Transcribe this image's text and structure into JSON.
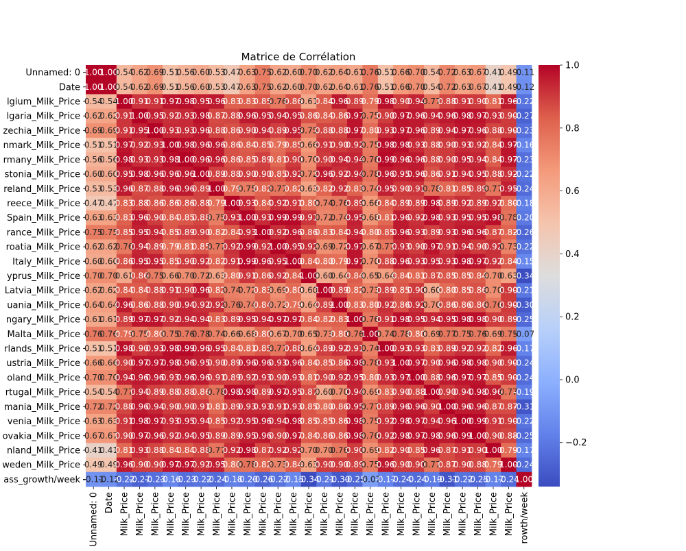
{
  "chart_data": {
    "type": "heatmap",
    "title": "Matrice de Corrélation",
    "xlabel": "",
    "ylabel": "",
    "row_labels": [
      "Unnamed: 0",
      "Date",
      "lgium_Milk_Price",
      "lgaria_Milk_Price",
      "zechia_Milk_Price",
      "nmark_Milk_Price",
      "rmany_Milk_Price",
      "stonia_Milk_Price",
      "reland_Milk_Price",
      "reece_Milk_Price",
      "Spain_Milk_Price",
      "rance_Milk_Price",
      "roatia_Milk_Price",
      "Italy_Milk_Price",
      "yprus_Milk_Price",
      "Latvia_Milk_Price",
      "uania_Milk_Price",
      "ngary_Milk_Price",
      "Malta_Milk_Price",
      "rlands_Milk_Price",
      "ustria_Milk_Price",
      "oland_Milk_Price",
      "rtugal_Milk_Price",
      "mania_Milk_Price",
      "venia_Milk_Price",
      "ovakia_Milk_Price",
      "nland_Milk_Price",
      "weden_Milk_Price",
      "ass_growth/week"
    ],
    "col_labels": [
      "Unnamed: 0",
      "Date",
      "Milk_Price",
      "Milk_Price",
      "Milk_Price",
      "Milk_Price",
      "Milk_Price",
      "Milk_Price",
      "Milk_Price",
      "Milk_Price",
      "Milk_Price",
      "Milk_Price",
      "Milk_Price",
      "Milk_Price",
      "Milk_Price",
      "Milk_Price",
      "Milk_Price",
      "Milk_Price",
      "Milk_Price",
      "Milk_Price",
      "Milk_Price",
      "Milk_Price",
      "Milk_Price",
      "Milk_Price",
      "Milk_Price",
      "Milk_Price",
      "Milk_Price",
      "Milk_Price",
      "rowth/week"
    ],
    "values": [
      [
        1.0,
        1.0,
        0.54,
        0.62,
        0.69,
        0.51,
        0.56,
        0.6,
        0.53,
        0.47,
        0.63,
        0.75,
        0.62,
        0.6,
        0.7,
        0.62,
        0.64,
        0.61,
        0.76,
        0.51,
        0.66,
        0.7,
        0.54,
        0.72,
        0.63,
        0.67,
        0.41,
        0.49,
        -0.11
      ],
      [
        1.0,
        1.0,
        0.54,
        0.62,
        0.69,
        0.51,
        0.56,
        0.6,
        0.53,
        0.47,
        0.63,
        0.75,
        0.62,
        0.6,
        0.7,
        0.62,
        0.64,
        0.61,
        0.76,
        0.51,
        0.66,
        0.7,
        0.54,
        0.72,
        0.63,
        0.67,
        0.41,
        0.49,
        -0.12
      ],
      [
        0.54,
        0.54,
        1.0,
        0.91,
        0.91,
        0.97,
        0.98,
        0.95,
        0.96,
        0.83,
        0.83,
        0.85,
        0.76,
        0.86,
        0.61,
        0.84,
        0.96,
        0.89,
        0.79,
        0.98,
        0.9,
        0.94,
        0.77,
        0.88,
        0.91,
        0.9,
        0.81,
        0.96,
        -0.22
      ],
      [
        0.62,
        0.62,
        0.91,
        1.0,
        0.95,
        0.92,
        0.93,
        0.98,
        0.87,
        0.88,
        0.96,
        0.95,
        0.94,
        0.95,
        0.86,
        0.84,
        0.86,
        0.97,
        0.75,
        0.9,
        0.97,
        0.96,
        0.94,
        0.96,
        0.98,
        0.97,
        0.93,
        0.9,
        -0.27
      ],
      [
        0.69,
        0.69,
        0.91,
        0.95,
        1.0,
        0.93,
        0.93,
        0.96,
        0.88,
        0.86,
        0.9,
        0.94,
        0.89,
        0.95,
        0.75,
        0.88,
        0.88,
        0.97,
        0.8,
        0.93,
        0.97,
        0.96,
        0.89,
        0.94,
        0.97,
        0.96,
        0.88,
        0.9,
        -0.23
      ],
      [
        0.51,
        0.51,
        0.97,
        0.92,
        0.93,
        1.0,
        0.98,
        0.96,
        0.96,
        0.86,
        0.84,
        0.85,
        0.79,
        0.85,
        0.66,
        0.91,
        0.9,
        0.92,
        0.75,
        0.98,
        0.98,
        0.93,
        0.88,
        0.9,
        0.93,
        0.92,
        0.84,
        0.97,
        -0.16
      ],
      [
        0.56,
        0.56,
        0.98,
        0.93,
        0.93,
        0.98,
        1.0,
        0.96,
        0.96,
        0.86,
        0.85,
        0.89,
        0.81,
        0.9,
        0.7,
        0.9,
        0.94,
        0.94,
        0.76,
        0.99,
        0.96,
        0.96,
        0.88,
        0.9,
        0.95,
        0.94,
        0.84,
        0.97,
        -0.23
      ],
      [
        0.6,
        0.6,
        0.95,
        0.98,
        0.96,
        0.96,
        0.96,
        1.0,
        0.89,
        0.88,
        0.9,
        0.9,
        0.85,
        0.92,
        0.72,
        0.96,
        0.92,
        0.94,
        0.78,
        0.96,
        0.95,
        0.96,
        0.86,
        0.91,
        0.94,
        0.95,
        0.88,
        0.92,
        -0.22
      ],
      [
        0.53,
        0.53,
        0.96,
        0.87,
        0.88,
        0.96,
        0.96,
        0.89,
        1.0,
        0.79,
        0.75,
        0.82,
        0.77,
        0.82,
        0.63,
        0.82,
        0.92,
        0.83,
        0.74,
        0.95,
        0.9,
        0.91,
        0.78,
        0.81,
        0.85,
        0.89,
        0.77,
        0.95,
        -0.24
      ],
      [
        0.47,
        0.47,
        0.83,
        0.88,
        0.86,
        0.86,
        0.86,
        0.88,
        0.79,
        1.0,
        0.93,
        0.84,
        0.92,
        0.91,
        0.8,
        0.74,
        0.76,
        0.89,
        0.66,
        0.84,
        0.89,
        0.89,
        0.98,
        0.89,
        0.92,
        0.89,
        0.92,
        0.8,
        -0.18
      ],
      [
        0.63,
        0.63,
        0.83,
        0.96,
        0.9,
        0.84,
        0.85,
        0.88,
        0.75,
        0.93,
        1.0,
        0.93,
        0.99,
        0.99,
        0.91,
        0.72,
        0.74,
        0.95,
        0.68,
        0.81,
        0.96,
        0.92,
        0.98,
        0.93,
        0.95,
        0.95,
        0.98,
        0.78,
        -0.2
      ],
      [
        0.75,
        0.75,
        0.85,
        0.95,
        0.94,
        0.85,
        0.89,
        0.9,
        0.82,
        0.84,
        0.93,
        1.0,
        0.92,
        0.96,
        0.86,
        0.83,
        0.84,
        0.94,
        0.8,
        0.85,
        0.96,
        0.93,
        0.89,
        0.93,
        0.96,
        0.96,
        0.87,
        0.82,
        -0.26
      ],
      [
        0.62,
        0.62,
        0.76,
        0.94,
        0.89,
        0.79,
        0.81,
        0.85,
        0.77,
        0.92,
        0.99,
        0.92,
        1.0,
        0.95,
        0.92,
        0.69,
        0.72,
        0.97,
        0.67,
        0.77,
        0.93,
        0.9,
        0.97,
        0.91,
        0.94,
        0.9,
        0.92,
        0.73,
        -0.22
      ],
      [
        0.6,
        0.6,
        0.86,
        0.95,
        0.95,
        0.85,
        0.9,
        0.92,
        0.82,
        0.91,
        0.99,
        0.96,
        0.95,
        1.0,
        0.84,
        0.8,
        0.79,
        0.97,
        0.7,
        0.88,
        0.96,
        0.93,
        0.95,
        0.93,
        0.98,
        0.97,
        0.92,
        0.84,
        -0.15
      ],
      [
        0.7,
        0.7,
        0.61,
        0.86,
        0.75,
        0.66,
        0.7,
        0.72,
        0.63,
        0.8,
        0.91,
        0.86,
        0.92,
        0.84,
        1.0,
        0.6,
        0.64,
        0.84,
        0.65,
        0.64,
        0.84,
        0.81,
        0.87,
        0.85,
        0.85,
        0.84,
        0.7,
        0.63,
        -0.34
      ],
      [
        0.62,
        0.62,
        0.84,
        0.84,
        0.88,
        0.91,
        0.9,
        0.96,
        0.82,
        0.74,
        0.72,
        0.83,
        0.69,
        0.8,
        0.6,
        1.0,
        0.89,
        0.82,
        0.73,
        0.89,
        0.85,
        0.9,
        0.6,
        0.8,
        0.85,
        0.86,
        0.7,
        0.9,
        -0.21
      ],
      [
        0.64,
        0.64,
        0.96,
        0.86,
        0.88,
        0.9,
        0.94,
        0.92,
        0.92,
        0.76,
        0.74,
        0.84,
        0.72,
        0.79,
        0.64,
        0.89,
        1.0,
        0.83,
        0.8,
        0.92,
        0.86,
        0.92,
        0.7,
        0.86,
        0.86,
        0.86,
        0.76,
        0.9,
        -0.3
      ],
      [
        0.61,
        0.61,
        0.89,
        0.97,
        0.97,
        0.92,
        0.94,
        0.94,
        0.83,
        0.89,
        0.95,
        0.94,
        0.97,
        0.97,
        0.84,
        0.82,
        0.83,
        1.0,
        0.76,
        0.91,
        0.98,
        0.95,
        0.94,
        0.95,
        0.98,
        0.98,
        0.9,
        0.89,
        -0.25
      ],
      [
        0.76,
        0.76,
        0.79,
        0.75,
        0.8,
        0.75,
        0.76,
        0.78,
        0.74,
        0.66,
        0.68,
        0.8,
        0.67,
        0.7,
        0.65,
        0.73,
        0.8,
        0.76,
        1.0,
        0.74,
        0.78,
        0.8,
        0.69,
        0.77,
        0.75,
        0.76,
        0.69,
        0.75,
        -0.07
      ],
      [
        0.51,
        0.51,
        0.98,
        0.9,
        0.93,
        0.98,
        0.99,
        0.96,
        0.95,
        0.84,
        0.81,
        0.85,
        0.77,
        0.88,
        0.64,
        0.89,
        0.92,
        0.91,
        0.74,
        1.0,
        0.93,
        0.93,
        0.83,
        0.89,
        0.92,
        0.92,
        0.82,
        0.96,
        -0.17
      ],
      [
        0.66,
        0.66,
        0.9,
        0.97,
        0.97,
        0.98,
        0.96,
        0.95,
        0.9,
        0.89,
        0.96,
        0.96,
        0.93,
        0.96,
        0.84,
        0.85,
        0.86,
        0.98,
        0.78,
        0.93,
        1.0,
        0.97,
        0.9,
        0.96,
        0.98,
        0.98,
        0.9,
        0.9,
        -0.24
      ],
      [
        0.7,
        0.7,
        0.94,
        0.96,
        0.96,
        0.93,
        0.96,
        0.96,
        0.91,
        0.89,
        0.92,
        0.93,
        0.9,
        0.93,
        0.81,
        0.9,
        0.92,
        0.95,
        0.8,
        0.93,
        0.97,
        1.0,
        0.88,
        0.96,
        0.97,
        0.97,
        0.85,
        0.9,
        -0.24
      ],
      [
        0.54,
        0.54,
        0.77,
        0.94,
        0.89,
        0.88,
        0.88,
        0.86,
        0.78,
        0.98,
        0.98,
        0.89,
        0.97,
        0.95,
        0.87,
        0.6,
        0.7,
        0.94,
        0.69,
        0.83,
        0.9,
        0.88,
        1.0,
        0.9,
        0.94,
        0.98,
        0.96,
        0.77,
        -0.19
      ],
      [
        0.72,
        0.72,
        0.88,
        0.96,
        0.94,
        0.9,
        0.9,
        0.91,
        0.81,
        0.89,
        0.93,
        0.93,
        0.91,
        0.93,
        0.85,
        0.8,
        0.86,
        0.95,
        0.77,
        0.89,
        0.96,
        0.96,
        0.9,
        1.0,
        0.96,
        0.96,
        0.87,
        0.87,
        -0.31
      ],
      [
        0.63,
        0.63,
        0.91,
        0.98,
        0.97,
        0.93,
        0.95,
        0.94,
        0.85,
        0.92,
        0.95,
        0.96,
        0.94,
        0.98,
        0.85,
        0.85,
        0.86,
        0.98,
        0.75,
        0.92,
        0.98,
        0.97,
        0.94,
        0.96,
        1.0,
        0.99,
        0.91,
        0.9,
        -0.22
      ],
      [
        0.67,
        0.67,
        0.9,
        0.97,
        0.96,
        0.92,
        0.94,
        0.95,
        0.89,
        0.89,
        0.95,
        0.96,
        0.9,
        0.97,
        0.84,
        0.86,
        0.86,
        0.98,
        0.76,
        0.92,
        0.98,
        0.97,
        0.98,
        0.96,
        0.99,
        1.0,
        0.9,
        0.88,
        -0.25
      ],
      [
        0.41,
        0.41,
        0.81,
        0.93,
        0.88,
        0.84,
        0.84,
        0.88,
        0.77,
        0.92,
        0.98,
        0.87,
        0.92,
        0.92,
        0.7,
        0.7,
        0.76,
        0.9,
        0.69,
        0.82,
        0.9,
        0.85,
        0.96,
        0.87,
        0.91,
        0.9,
        1.0,
        0.79,
        -0.17
      ],
      [
        0.49,
        0.49,
        0.96,
        0.9,
        0.9,
        0.97,
        0.97,
        0.92,
        0.95,
        0.8,
        0.78,
        0.82,
        0.73,
        0.84,
        0.63,
        0.9,
        0.9,
        0.89,
        0.75,
        0.96,
        0.9,
        0.9,
        0.77,
        0.87,
        0.9,
        0.88,
        0.79,
        1.0,
        -0.24
      ],
      [
        -0.11,
        -0.12,
        -0.22,
        -0.27,
        -0.23,
        -0.16,
        -0.23,
        -0.22,
        -0.24,
        -0.18,
        -0.2,
        -0.26,
        -0.22,
        -0.15,
        -0.34,
        -0.21,
        -0.3,
        -0.25,
        -0.07,
        -0.17,
        -0.24,
        -0.24,
        -0.19,
        -0.31,
        -0.22,
        -0.25,
        -0.17,
        -0.24,
        1.0
      ]
    ],
    "vmin": -0.34,
    "vmax": 1.0,
    "colormap": "coolwarm",
    "colorbar_ticks": [
      1.0,
      0.8,
      0.6,
      0.4,
      0.2,
      0.0,
      -0.2
    ],
    "colorbar_tick_labels": [
      "1.0",
      "0.8",
      "0.6",
      "0.4",
      "0.2",
      "0.0",
      "−0.2"
    ],
    "annotation_format": "2 decimals",
    "grid": false
  }
}
